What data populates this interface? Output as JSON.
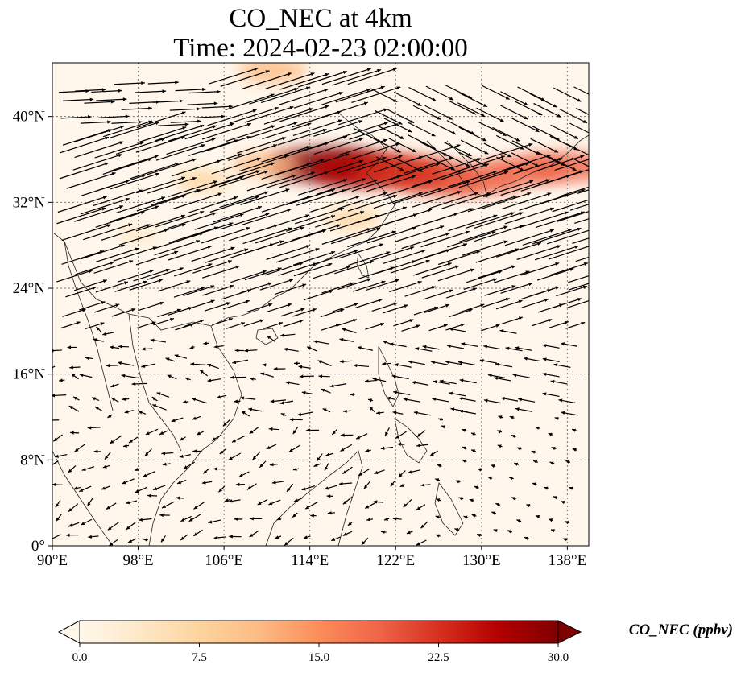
{
  "map": {
    "title_line1": "CO_NEC at 4km",
    "title_line2": "Time: 2024-02-23 02:00:00",
    "lon_range": [
      90,
      140
    ],
    "lat_range": [
      0,
      45
    ],
    "lon_ticks": [
      {
        "value": 90,
        "label": "90°E"
      },
      {
        "value": 98,
        "label": "98°E"
      },
      {
        "value": 106,
        "label": "106°E"
      },
      {
        "value": 114,
        "label": "114°E"
      },
      {
        "value": 122,
        "label": "122°E"
      },
      {
        "value": 130,
        "label": "130°E"
      },
      {
        "value": 138,
        "label": "138°E"
      }
    ],
    "lat_ticks": [
      {
        "value": 0,
        "label": "0°"
      },
      {
        "value": 8,
        "label": "8°N"
      },
      {
        "value": 16,
        "label": "16°N"
      },
      {
        "value": 24,
        "label": "24°N"
      },
      {
        "value": 32,
        "label": "32°N"
      },
      {
        "value": 40,
        "label": "40°N"
      }
    ],
    "gridlines": true,
    "vectors": "wind field arrows (black)"
  },
  "colorbar": {
    "label": "CO_NEC (ppbv)",
    "colormap": "OrRd",
    "range": [
      0,
      30
    ],
    "extend": "both",
    "ticks": [
      {
        "value": 0,
        "label": "0.0"
      },
      {
        "value": 7.5,
        "label": "7.5"
      },
      {
        "value": 15,
        "label": "15.0"
      },
      {
        "value": 22.5,
        "label": "22.5"
      },
      {
        "value": 30,
        "label": "30.0"
      }
    ],
    "colors": [
      "#fff7ec",
      "#fee8c8",
      "#fdd49e",
      "#fdbb84",
      "#fc8d59",
      "#ef6548",
      "#d7301f",
      "#b30000",
      "#7f0000"
    ]
  },
  "plumes": [
    {
      "lon": 115.5,
      "lat": 35.5,
      "conc": 30
    },
    {
      "lon": 119,
      "lat": 35.0,
      "conc": 26
    },
    {
      "lon": 122.5,
      "lat": 35.0,
      "conc": 22
    },
    {
      "lon": 126,
      "lat": 34.2,
      "conc": 22
    },
    {
      "lon": 130,
      "lat": 34.0,
      "conc": 17
    },
    {
      "lon": 134,
      "lat": 35.0,
      "conc": 18
    },
    {
      "lon": 138,
      "lat": 35.3,
      "conc": 20
    },
    {
      "lon": 110,
      "lat": 35.5,
      "conc": 12
    },
    {
      "lon": 104,
      "lat": 34.0,
      "conc": 6
    },
    {
      "lon": 110.5,
      "lat": 44.3,
      "conc": 12
    },
    {
      "lon": 118,
      "lat": 30.5,
      "conc": 6
    },
    {
      "lon": 98,
      "lat": 29.0,
      "conc": 2
    }
  ]
}
